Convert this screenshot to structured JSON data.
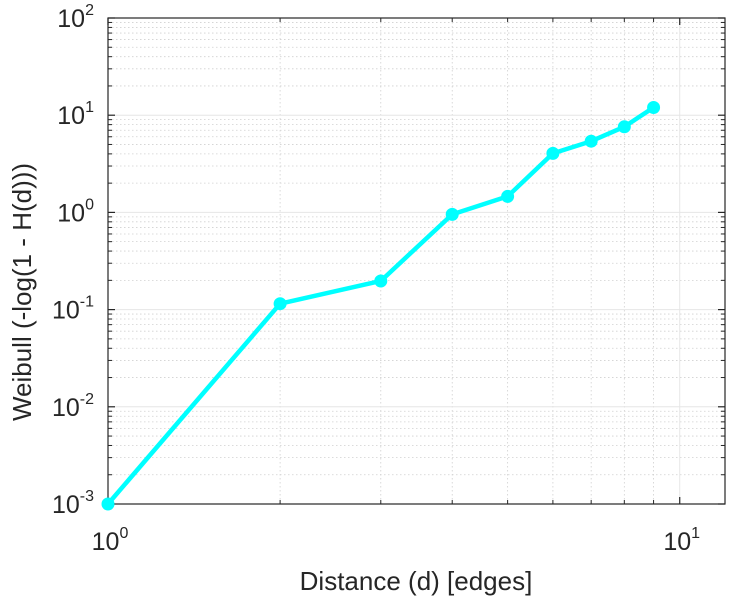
{
  "chart_data": {
    "type": "line",
    "title": "",
    "xlabel": "Distance (d) [edges]",
    "ylabel": "Weibull (-log(1 - H(d)))",
    "xscale": "log",
    "yscale": "log",
    "xlim": [
      1,
      12
    ],
    "ylim": [
      0.001,
      100
    ],
    "grid": true,
    "minor_grid": true,
    "legend": "none",
    "x_ticks": [
      {
        "value": 1,
        "base": "10",
        "exp": "0"
      },
      {
        "value": 10,
        "base": "10",
        "exp": "1"
      }
    ],
    "y_ticks": [
      {
        "value": 0.001,
        "base": "10",
        "exp": "-3"
      },
      {
        "value": 0.01,
        "base": "10",
        "exp": "-2"
      },
      {
        "value": 0.1,
        "base": "10",
        "exp": "-1"
      },
      {
        "value": 1,
        "base": "10",
        "exp": "0"
      },
      {
        "value": 10,
        "base": "10",
        "exp": "1"
      },
      {
        "value": 100,
        "base": "10",
        "exp": "2"
      }
    ],
    "series": [
      {
        "color": "#00ffff",
        "marker": "circle",
        "x": [
          1,
          2,
          3,
          4,
          5,
          6,
          7,
          8,
          9
        ],
        "y": [
          0.001,
          0.115,
          0.197,
          0.955,
          1.46,
          4.05,
          5.4,
          7.6,
          12.0
        ]
      }
    ]
  }
}
